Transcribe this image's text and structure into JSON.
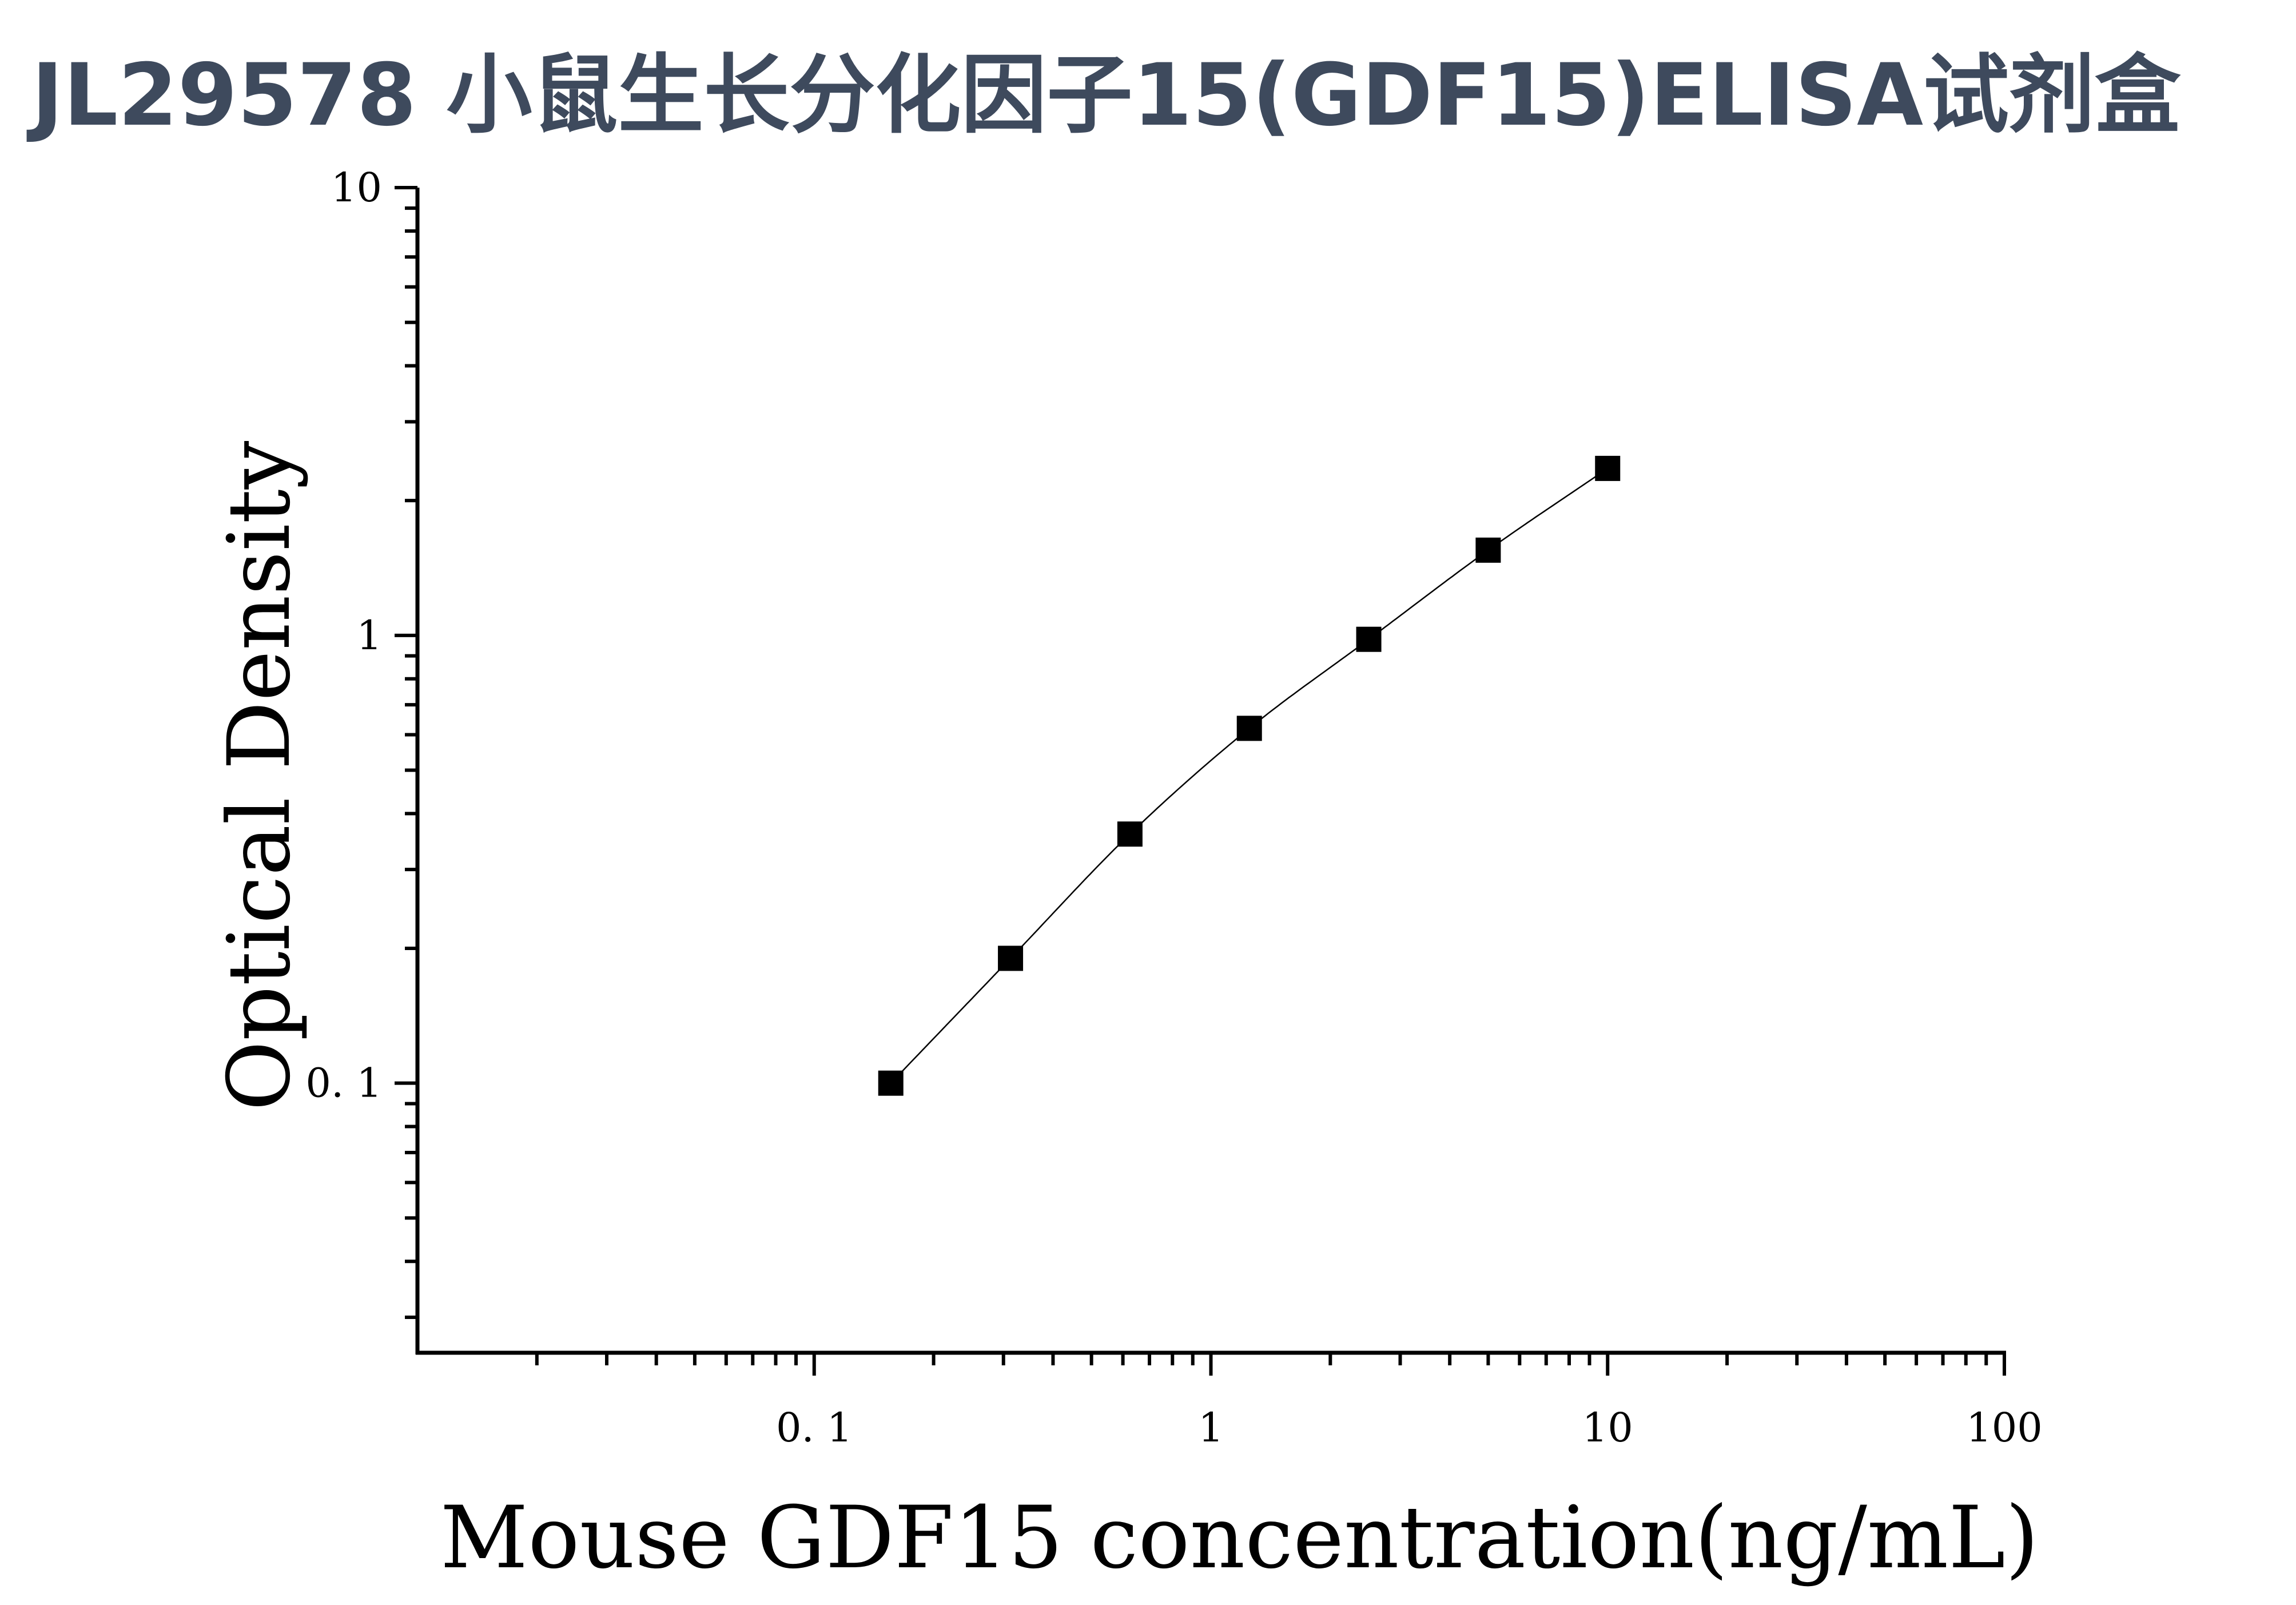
{
  "title": "JL29578 小鼠生长分化因子15(GDF15)ELISA试剂盒",
  "chart_data": {
    "type": "scatter",
    "xlabel": "Mouse GDF15 concentration(ng/mL)",
    "ylabel": "Optical Density",
    "x_scale": "log",
    "y_scale": "log",
    "xlim": [
      0.01,
      100
    ],
    "ylim": [
      0.025,
      10
    ],
    "x_tick_labels": [
      "0. 1",
      "1",
      "10",
      "100"
    ],
    "y_tick_labels": [
      "0. 1",
      "1",
      "10"
    ],
    "grid": false,
    "series": [
      {
        "marker": "square",
        "fit_line": true,
        "x": [
          0.156,
          0.3125,
          0.625,
          1.25,
          2.5,
          5,
          10
        ],
        "y": [
          0.1,
          0.19,
          0.36,
          0.62,
          0.98,
          1.55,
          2.36
        ]
      }
    ]
  }
}
